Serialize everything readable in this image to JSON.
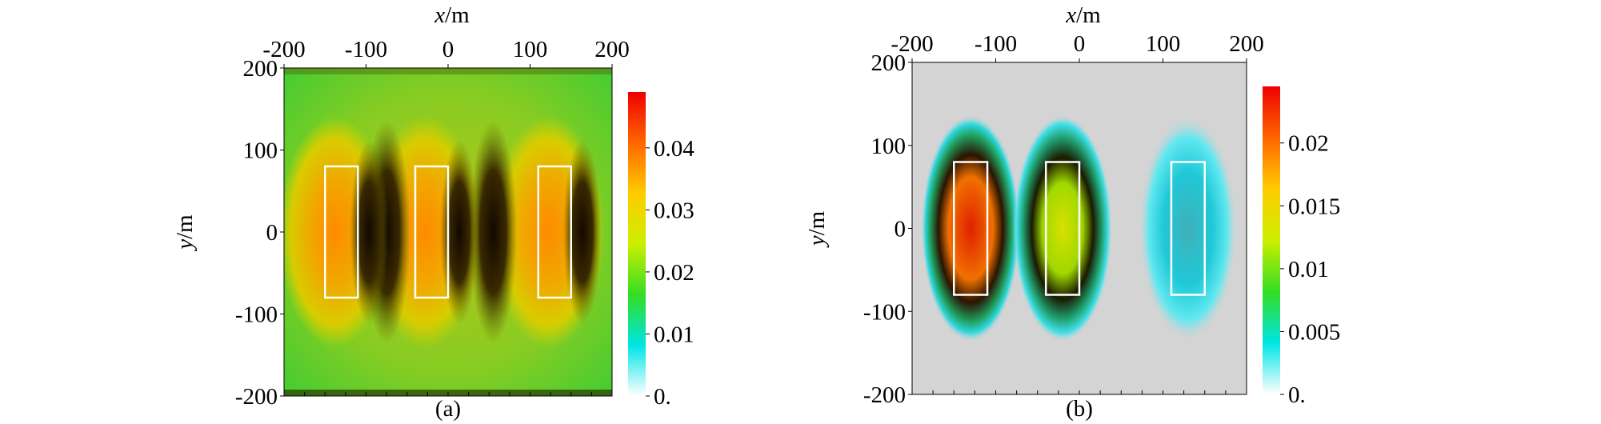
{
  "chart_data": [
    {
      "type": "heatmap",
      "caption": "(a)",
      "xlabel": "x/m",
      "ylabel": "y/m",
      "xlim": [
        -200,
        200
      ],
      "ylim": [
        -200,
        200
      ],
      "xticks": [
        "-200",
        "-100",
        "0",
        "100",
        "200"
      ],
      "yticks": [
        "200",
        "100",
        "0",
        "-100",
        "-200"
      ],
      "x_tick_values": [
        -200,
        -100,
        0,
        100,
        200
      ],
      "y_tick_values": [
        200,
        100,
        0,
        -100,
        -200
      ],
      "colorbar": {
        "ticks": [
          "0.04",
          "0.03",
          "0.02",
          "0.01",
          "0."
        ],
        "tick_values": [
          0.04,
          0.03,
          0.02,
          0.01,
          0.0
        ],
        "range": [
          0,
          0.049
        ],
        "colors": [
          "#ffffff",
          "#00e5e5",
          "#33dd22",
          "#ccee00",
          "#ffcc00",
          "#ff6600",
          "#ee0000"
        ]
      },
      "rectangles": [
        {
          "x": [
            -150,
            -110
          ],
          "y": [
            -80,
            80
          ]
        },
        {
          "x": [
            -40,
            0
          ],
          "y": [
            -80,
            80
          ]
        },
        {
          "x": [
            110,
            150
          ],
          "y": [
            -80,
            80
          ]
        }
      ],
      "rect_color": "#ffffff",
      "background_color": "#77cc22"
    },
    {
      "type": "heatmap",
      "caption": "(b)",
      "xlabel": "x/m",
      "ylabel": "y/m",
      "xlim": [
        -200,
        200
      ],
      "ylim": [
        -200,
        200
      ],
      "xticks": [
        "-200",
        "-100",
        "0",
        "100",
        "200"
      ],
      "yticks": [
        "200",
        "100",
        "0",
        "-100",
        "-200"
      ],
      "x_tick_values": [
        -200,
        -100,
        0,
        100,
        200
      ],
      "y_tick_values": [
        200,
        100,
        0,
        -100,
        -200
      ],
      "colorbar": {
        "ticks": [
          "0.02",
          "0.015",
          "0.01",
          "0.005",
          "0."
        ],
        "tick_values": [
          0.02,
          0.015,
          0.01,
          0.005,
          0.0
        ],
        "range": [
          0,
          0.0245
        ],
        "colors": [
          "#ffffff",
          "#00e5e5",
          "#33dd22",
          "#ccee00",
          "#ffcc00",
          "#ff6600",
          "#ee0000"
        ]
      },
      "rectangles": [
        {
          "x": [
            -150,
            -110
          ],
          "y": [
            -80,
            80
          ]
        },
        {
          "x": [
            -40,
            0
          ],
          "y": [
            -80,
            80
          ]
        },
        {
          "x": [
            110,
            150
          ],
          "y": [
            -80,
            80
          ]
        }
      ],
      "rect_color": "#ffffff",
      "background_color": "#d4d4d4"
    }
  ]
}
